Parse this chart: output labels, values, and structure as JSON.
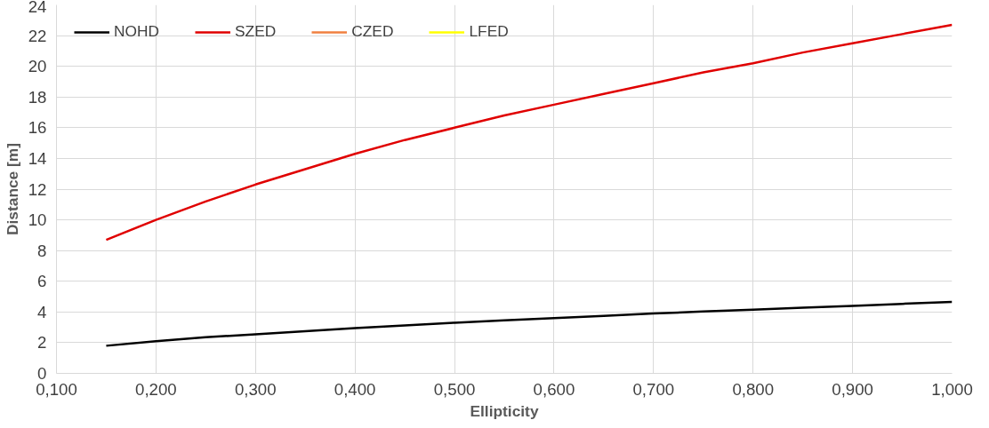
{
  "chart_data": {
    "type": "line",
    "xlabel": "Ellipticity",
    "ylabel": "Distance [m]",
    "x": [
      0.15,
      0.2,
      0.25,
      0.3,
      0.35,
      0.4,
      0.45,
      0.5,
      0.55,
      0.6,
      0.65,
      0.7,
      0.75,
      0.8,
      0.85,
      0.9,
      0.95,
      1.0
    ],
    "series": [
      {
        "name": "NOHD",
        "color": "#000000",
        "values": [
          1.8,
          2.1,
          2.35,
          2.55,
          2.75,
          2.95,
          3.12,
          3.3,
          3.45,
          3.6,
          3.75,
          3.9,
          4.03,
          4.15,
          4.28,
          4.4,
          4.53,
          4.65
        ]
      },
      {
        "name": "SZED",
        "color": "#e00000",
        "values": [
          8.7,
          10.0,
          11.2,
          12.3,
          13.3,
          14.3,
          15.2,
          16.0,
          16.8,
          17.5,
          18.2,
          18.9,
          19.6,
          20.2,
          20.9,
          21.5,
          22.1,
          22.7
        ]
      },
      {
        "name": "CZED",
        "color": "#f08040",
        "values": [
          null,
          null,
          null,
          null,
          null,
          null,
          null,
          null,
          null,
          null,
          null,
          null,
          null,
          null,
          null,
          null,
          null,
          null
        ]
      },
      {
        "name": "LFED",
        "color": "#ffff00",
        "values": [
          null,
          null,
          null,
          null,
          null,
          null,
          null,
          null,
          null,
          null,
          null,
          null,
          null,
          null,
          null,
          null,
          null,
          null
        ]
      }
    ],
    "xlim": [
      0.1,
      1.0
    ],
    "ylim": [
      0,
      24
    ],
    "xticks": [
      {
        "value": 0.1,
        "label": "0,100"
      },
      {
        "value": 0.2,
        "label": "0,200"
      },
      {
        "value": 0.3,
        "label": "0,300"
      },
      {
        "value": 0.4,
        "label": "0,400"
      },
      {
        "value": 0.5,
        "label": "0,500"
      },
      {
        "value": 0.6,
        "label": "0,600"
      },
      {
        "value": 0.7,
        "label": "0,700"
      },
      {
        "value": 0.8,
        "label": "0,800"
      },
      {
        "value": 0.9,
        "label": "0,900"
      },
      {
        "value": 1.0,
        "label": "1,000"
      }
    ],
    "yticks": [
      0,
      2,
      4,
      6,
      8,
      10,
      12,
      14,
      16,
      18,
      20,
      22,
      24
    ],
    "grid": true,
    "legend": "top left",
    "marker": "none",
    "line_style": "solid"
  }
}
